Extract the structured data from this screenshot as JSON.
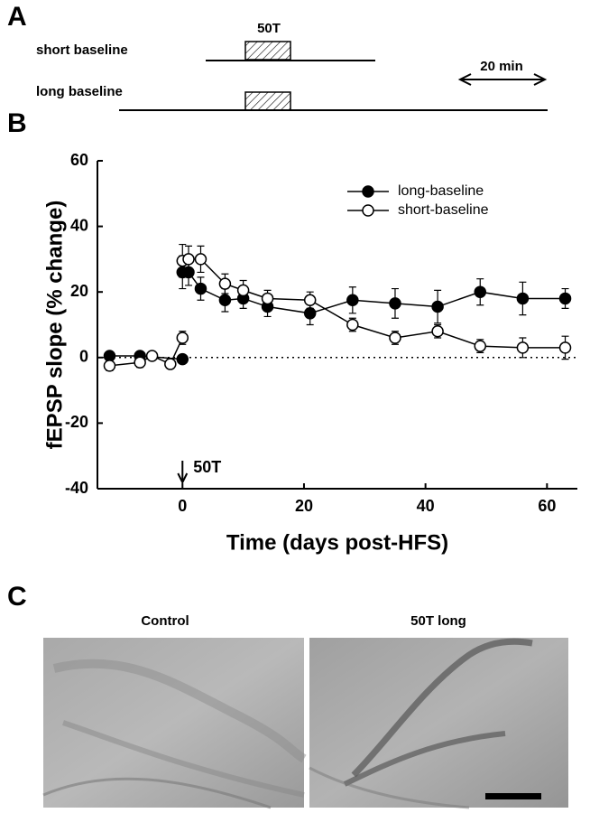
{
  "panel_a": {
    "label": "A",
    "stimulus": "50T",
    "rows": [
      "short baseline",
      "long baseline"
    ],
    "scale": "20 min"
  },
  "chart_data": {
    "type": "line",
    "label": "B",
    "x_label": "Time (days post-HFS)",
    "y_label": "fEPSP slope (% change)",
    "xlim": [
      -14,
      65
    ],
    "ylim": [
      -40,
      60
    ],
    "xticks": [
      0,
      20,
      40,
      60
    ],
    "yticks": [
      -40,
      -20,
      0,
      20,
      40,
      60
    ],
    "reference_line": 0,
    "legend": "upper right",
    "annotation": {
      "text": "50T",
      "x": 0
    },
    "series": [
      {
        "name": "long-baseline",
        "color": "#000000",
        "marker_fill": "#000000",
        "x": [
          -12,
          -7,
          0,
          null,
          0,
          1,
          3,
          7,
          10,
          14,
          21,
          28,
          35,
          42,
          49,
          56,
          63
        ],
        "values": [
          0.5,
          0.5,
          -0.5,
          null,
          26,
          26,
          21,
          17.5,
          18,
          15.5,
          13.5,
          17.5,
          16.5,
          15.5,
          20,
          18,
          18
        ],
        "errors": [
          1,
          1,
          1,
          null,
          5,
          4,
          3.5,
          3.5,
          3,
          3,
          3.5,
          4,
          4.5,
          5,
          4,
          5,
          3
        ]
      },
      {
        "name": "short-baseline",
        "color": "#000000",
        "marker_fill": "#ffffff",
        "x": [
          -12,
          -7,
          -5,
          -2,
          0,
          null,
          0,
          1,
          3,
          7,
          10,
          14,
          21,
          28,
          35,
          42,
          49,
          56,
          63
        ],
        "values": [
          -2.5,
          -1.5,
          0.5,
          -2,
          6,
          null,
          29.5,
          30,
          30,
          22.5,
          20.5,
          18,
          17.5,
          10,
          6,
          8,
          3.5,
          3,
          3
        ],
        "errors": [
          1.5,
          1.5,
          1,
          1,
          2,
          null,
          5,
          4,
          4,
          3,
          3,
          2.5,
          2.5,
          2,
          2,
          2,
          2,
          3,
          3.5
        ]
      }
    ]
  },
  "panel_c": {
    "label": "C",
    "images": [
      "Control",
      "50T long"
    ]
  }
}
